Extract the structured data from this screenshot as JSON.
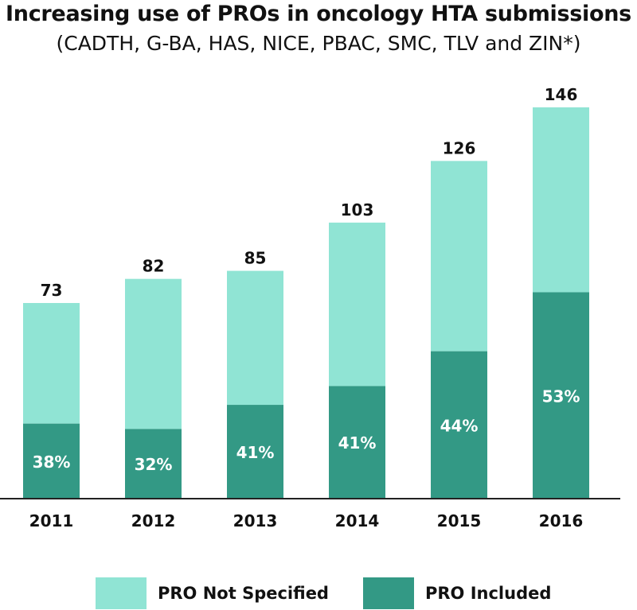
{
  "chart_data": {
    "type": "bar",
    "stacked": true,
    "title": "Increasing use of PROs in oncology HTA submissions",
    "subtitle": "(CADTH, G-BA, HAS, NICE, PBAC, SMC, TLV and ZIN*)",
    "categories": [
      "2011",
      "2012",
      "2013",
      "2014",
      "2015",
      "2016"
    ],
    "totals": [
      73,
      82,
      85,
      103,
      126,
      146
    ],
    "total_labels": [
      "73",
      "82",
      "85",
      "103",
      "126",
      "146"
    ],
    "series": [
      {
        "name": "PRO Included",
        "color": "#339985",
        "values": [
          28,
          26,
          35,
          42,
          55,
          77
        ],
        "percent_labels": [
          "38%",
          "32%",
          "41%",
          "41%",
          "44%",
          "53%"
        ]
      },
      {
        "name": "PRO Not Specified",
        "color": "#90E4D4",
        "values": [
          45,
          56,
          50,
          61,
          71,
          69
        ]
      }
    ],
    "xlabel": "",
    "ylabel": "",
    "ylim": [
      0,
      160
    ],
    "grid": false,
    "legend_position": "bottom"
  }
}
